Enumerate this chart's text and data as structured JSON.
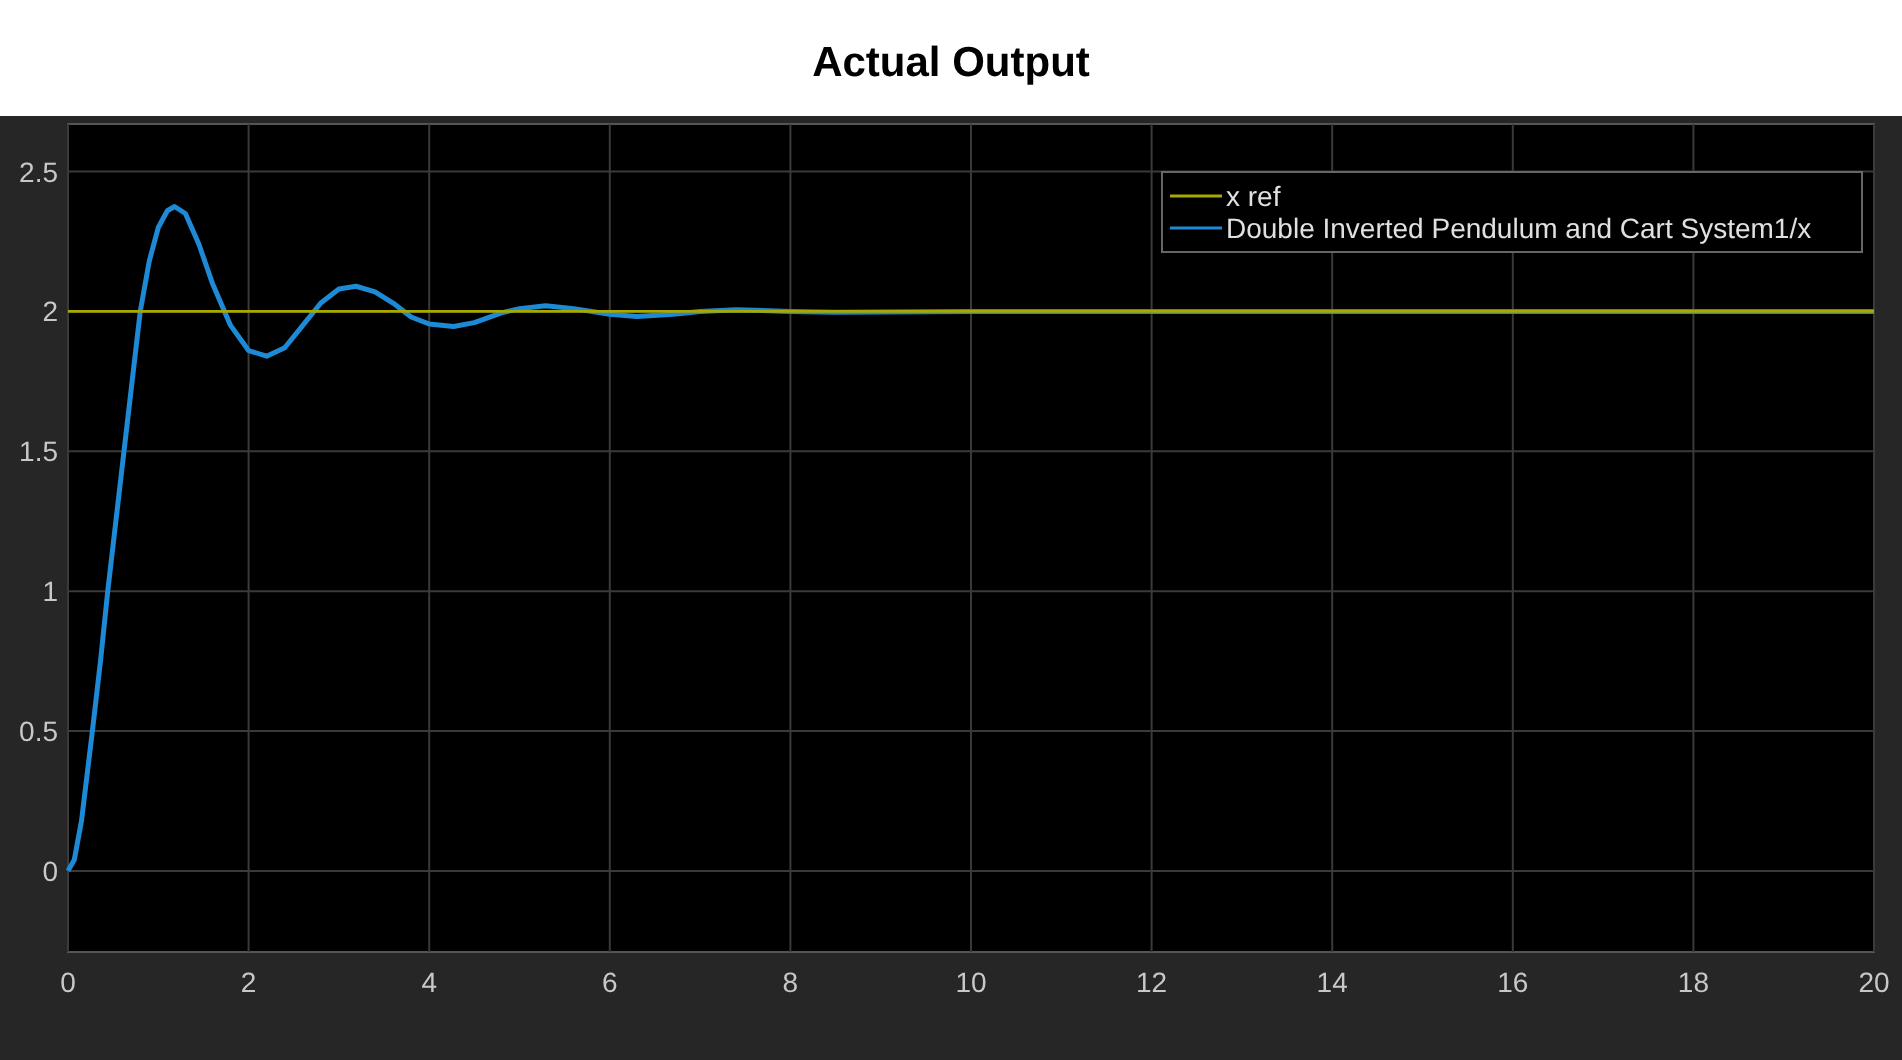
{
  "chart_data": {
    "type": "line",
    "title": "Actual Output",
    "xlim": [
      0,
      20
    ],
    "ylim": [
      -0.29,
      2.67
    ],
    "xticks": [
      0,
      2,
      4,
      6,
      8,
      10,
      12,
      14,
      16,
      18,
      20
    ],
    "yticks": [
      0,
      0.5,
      1,
      1.5,
      2,
      2.5
    ],
    "grid": true,
    "legend": "top right",
    "line_style": "solid",
    "marker": "none",
    "series": [
      {
        "name": "x ref",
        "color": "#a8a800",
        "x": [
          0,
          20
        ],
        "values": [
          2,
          2
        ]
      },
      {
        "name": "Double Inverted Pendulum and Cart System1/x",
        "color": "#1e8ad6",
        "x": [
          0,
          0.07,
          0.15,
          0.27,
          0.36,
          0.44,
          0.53,
          0.62,
          0.71,
          0.8,
          0.9,
          1.0,
          1.1,
          1.18,
          1.3,
          1.45,
          1.6,
          1.8,
          2.0,
          2.2,
          2.4,
          2.6,
          2.8,
          3.0,
          3.19,
          3.4,
          3.6,
          3.8,
          4.0,
          4.27,
          4.5,
          4.8,
          5.0,
          5.29,
          5.6,
          6.0,
          6.3,
          6.7,
          7.0,
          7.4,
          8.0,
          8.5,
          10,
          20
        ],
        "values": [
          0,
          0.04,
          0.18,
          0.5,
          0.75,
          1,
          1.25,
          1.5,
          1.75,
          2,
          2.18,
          2.3,
          2.36,
          2.375,
          2.35,
          2.24,
          2.1,
          1.95,
          1.86,
          1.84,
          1.87,
          1.95,
          2.03,
          2.08,
          2.09,
          2.07,
          2.03,
          1.98,
          1.955,
          1.946,
          1.96,
          1.995,
          2.01,
          2.02,
          2.01,
          1.99,
          1.982,
          1.99,
          2.0,
          2.006,
          2.0,
          1.997,
          2,
          2
        ]
      }
    ]
  }
}
